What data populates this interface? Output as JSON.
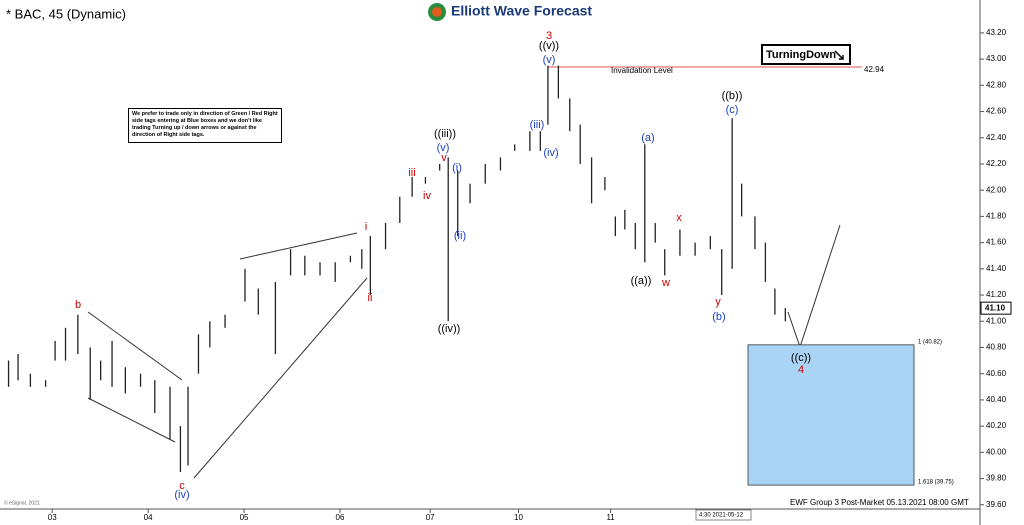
{
  "chart_data": {
    "type": "ohlc",
    "title": "* BAC, 45 (Dynamic)",
    "logo": "Elliott Wave Forecast",
    "signal": "TurningDown",
    "note": "We prefer to trade only in direction of Green / Red Right side tags entering at Blue boxes and we don't like trading Turning up / down arrows or against the direction of Right side tags.",
    "footer": "EWF Group 3 Post-Market 05.13.2021 08:00 GMT",
    "copyright": "© eSignal, 2021",
    "cursor_time": "4:30 2021-05-12",
    "color": "#222222",
    "xlim": [
      -0.55,
      9.77
    ],
    "ylim": [
      39.56,
      43.39
    ],
    "xticks": [
      {
        "value": 0,
        "label": "03"
      },
      {
        "value": 1.01,
        "label": "04"
      },
      {
        "value": 2.02,
        "label": "05"
      },
      {
        "value": 3.03,
        "label": "06"
      },
      {
        "value": 3.98,
        "label": "07"
      },
      {
        "value": 4.91,
        "label": "10"
      },
      {
        "value": 5.88,
        "label": "11"
      }
    ],
    "yticks": [
      {
        "value": 43.2,
        "label": "43.20"
      },
      {
        "value": 43.0,
        "label": "43.00"
      },
      {
        "value": 42.8,
        "label": "42.80"
      },
      {
        "value": 42.6,
        "label": "42.60"
      },
      {
        "value": 42.4,
        "label": "42.40"
      },
      {
        "value": 42.2,
        "label": "42.20"
      },
      {
        "value": 42.0,
        "label": "42.00"
      },
      {
        "value": 41.8,
        "label": "41.80"
      },
      {
        "value": 41.6,
        "label": "41.60"
      },
      {
        "value": 41.4,
        "label": "41.40"
      },
      {
        "value": 41.2,
        "label": "41.20"
      },
      {
        "value": 41.0,
        "label": "41.00"
      },
      {
        "value": 40.8,
        "label": "40.80"
      },
      {
        "value": 40.6,
        "label": "40.60"
      },
      {
        "value": 40.4,
        "label": "40.40"
      },
      {
        "value": 40.2,
        "label": "40.20"
      },
      {
        "value": 40.0,
        "label": "40.00"
      },
      {
        "value": 39.8,
        "label": "39.80"
      },
      {
        "value": 39.6,
        "label": "39.60"
      }
    ],
    "x": [
      -0.46,
      -0.36,
      -0.23,
      -0.07,
      0.03,
      0.14,
      0.27,
      0.4,
      0.51,
      0.63,
      0.77,
      0.93,
      1.08,
      1.24,
      1.35,
      1.43,
      1.54,
      1.66,
      1.82,
      2.03,
      2.17,
      2.35,
      2.51,
      2.66,
      2.82,
      2.98,
      3.14,
      3.26,
      3.35,
      3.51,
      3.66,
      3.79,
      3.93,
      4.08,
      4.17,
      4.27,
      4.4,
      4.56,
      4.72,
      4.87,
      5.03,
      5.14,
      5.22,
      5.33,
      5.45,
      5.56,
      5.68,
      5.82,
      5.93,
      6.03,
      6.14,
      6.24,
      6.35,
      6.45,
      6.61,
      6.77,
      6.93,
      7.05,
      7.16,
      7.26,
      7.4,
      7.51,
      7.61,
      7.72
    ],
    "high": [
      40.7,
      40.75,
      40.6,
      40.55,
      40.85,
      40.95,
      41.05,
      40.8,
      40.7,
      40.85,
      40.65,
      40.6,
      40.55,
      40.5,
      40.2,
      40.5,
      40.9,
      41.0,
      41.05,
      41.4,
      41.25,
      41.3,
      41.55,
      41.5,
      41.45,
      41.45,
      41.5,
      41.55,
      41.65,
      41.75,
      41.95,
      42.1,
      42.1,
      42.2,
      42.25,
      42.15,
      42.05,
      42.2,
      42.25,
      42.35,
      42.45,
      42.45,
      42.95,
      42.95,
      42.7,
      42.5,
      42.25,
      42.1,
      41.8,
      41.85,
      41.75,
      42.35,
      41.75,
      41.55,
      41.7,
      41.6,
      41.65,
      41.55,
      42.55,
      42.05,
      41.8,
      41.6,
      41.25,
      41.1
    ],
    "low": [
      40.5,
      40.55,
      40.5,
      40.5,
      40.7,
      40.7,
      40.75,
      40.4,
      40.55,
      40.5,
      40.45,
      40.5,
      40.3,
      40.1,
      39.85,
      39.9,
      40.6,
      40.8,
      40.95,
      41.15,
      41.05,
      40.75,
      41.35,
      41.35,
      41.35,
      41.3,
      41.45,
      41.4,
      41.2,
      41.55,
      41.75,
      41.95,
      42.05,
      42.15,
      41.0,
      41.65,
      41.9,
      42.05,
      42.15,
      42.3,
      42.3,
      42.3,
      42.5,
      42.7,
      42.45,
      42.2,
      41.9,
      42.0,
      41.65,
      41.7,
      41.55,
      41.45,
      41.6,
      41.35,
      41.5,
      41.5,
      41.55,
      41.2,
      41.4,
      41.8,
      41.55,
      41.3,
      41.05,
      41.0
    ],
    "invalidation": {
      "label": "Invalidation Level",
      "value": 42.94,
      "value_label": "42.94"
    },
    "last_price": {
      "value": 41.1,
      "label": "41.10"
    },
    "target_zone": {
      "top": 40.82,
      "top_label": "1 (40.82)",
      "bottom": 39.75,
      "bottom_label": "1.618 (39.75)",
      "color": "#a9d4f5"
    },
    "annotations": [
      {
        "text": "b",
        "color": "#d00000"
      },
      {
        "text": "c",
        "color": "#d00000"
      },
      {
        "text": "(iv)",
        "color": "#1a3fbf"
      },
      {
        "text": "i",
        "color": "#d00000"
      },
      {
        "text": "ii",
        "color": "#d00000"
      },
      {
        "text": "iii",
        "color": "#d00000"
      },
      {
        "text": "iv",
        "color": "#d00000"
      },
      {
        "text": "v",
        "color": "#d00000"
      },
      {
        "text": "((iii))",
        "color": "#000000"
      },
      {
        "text": "(v)",
        "color": "#1a3fbf"
      },
      {
        "text": "(i)",
        "color": "#1a3fbf"
      },
      {
        "text": "(ii)",
        "color": "#1a3fbf"
      },
      {
        "text": "((iv))",
        "color": "#000000"
      },
      {
        "text": "3",
        "color": "#d00000"
      },
      {
        "text": "((v))",
        "color": "#000000"
      },
      {
        "text": "(v)",
        "color": "#1a3fbf"
      },
      {
        "text": "(iii)",
        "color": "#1a3fbf"
      },
      {
        "text": "(iv)",
        "color": "#1a3fbf"
      },
      {
        "text": "(a)",
        "color": "#1a3fbf"
      },
      {
        "text": "x",
        "color": "#d00000"
      },
      {
        "text": "((a))",
        "color": "#000000"
      },
      {
        "text": "w",
        "color": "#d00000"
      },
      {
        "text": "((b))",
        "color": "#000000"
      },
      {
        "text": "(c)",
        "color": "#1a3fbf"
      },
      {
        "text": "y",
        "color": "#d00000"
      },
      {
        "text": "(b)",
        "color": "#1a3fbf"
      },
      {
        "text": "((c))",
        "color": "#000000"
      },
      {
        "text": "4",
        "color": "#d00000"
      }
    ]
  }
}
